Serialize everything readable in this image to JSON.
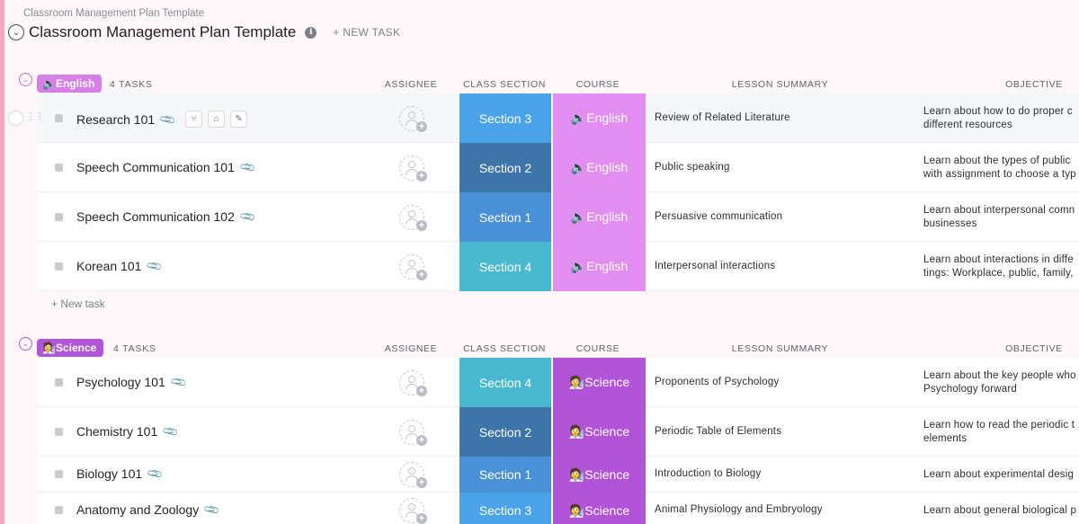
{
  "breadcrumb": "Classroom Management Plan Template",
  "title": "Classroom Management Plan Template",
  "new_task_top": "+ NEW TASK",
  "columns": {
    "assignee": "ASSIGNEE",
    "class_section": "CLASS SECTION",
    "course": "COURSE",
    "lesson_summary": "LESSON SUMMARY",
    "objective": "OBJECTIVE"
  },
  "colors": {
    "section_1": "#4a90d6",
    "section_2": "#3d75a8",
    "section_3": "#4aa3e8",
    "section_4": "#4ab8cf",
    "english": "#e28ef0",
    "science": "#b154d8"
  },
  "groups": [
    {
      "label": "🔈English",
      "count": "4 TASKS",
      "new_task": "+ New task",
      "tasks": [
        {
          "name": "Research 101",
          "section": "Section 3",
          "course": "🔈English",
          "summary": "Review of Related Literature",
          "objective_1": "Learn about how to do proper c",
          "objective_2": "different resources"
        },
        {
          "name": "Speech Communication 101",
          "section": "Section 2",
          "course": "🔈English",
          "summary": "Public speaking",
          "objective_1": "Learn about the types of public",
          "objective_2": "with assignment to choose a typ"
        },
        {
          "name": "Speech Communication 102",
          "section": "Section 1",
          "course": "🔈English",
          "summary": "Persuasive communication",
          "objective_1": "Learn about interpersonal comn",
          "objective_2": "businesses"
        },
        {
          "name": "Korean 101",
          "section": "Section 4",
          "course": "🔈English",
          "summary": "Interpersonal interactions",
          "objective_1": "Learn about interactions in diffe",
          "objective_2": "tings: Workplace, public, family,"
        }
      ]
    },
    {
      "label": "🧑‍🔬Science",
      "count": "4 TASKS",
      "tasks": [
        {
          "name": "Psychology 101",
          "section": "Section 4",
          "course": "🧑‍🔬Science",
          "summary": "Proponents of Psychology",
          "objective_1": "Learn about the key people who",
          "objective_2": "Psychology forward"
        },
        {
          "name": "Chemistry 101",
          "section": "Section 2",
          "course": "🧑‍🔬Science",
          "summary": "Periodic Table of Elements",
          "objective_1": "Learn how to read the periodic t",
          "objective_2": "elements"
        },
        {
          "name": "Biology 101",
          "section": "Section 1",
          "course": "🧑‍🔬Science",
          "summary": "Introduction to Biology",
          "objective_1": "Learn about experimental desig",
          "objective_2": ""
        },
        {
          "name": "Anatomy and Zoology",
          "section": "Section 3",
          "course": "🧑‍🔬Science",
          "summary": "Animal Physiology and Embryology",
          "objective_1": "Learn about general biological p",
          "objective_2": ""
        }
      ]
    }
  ]
}
